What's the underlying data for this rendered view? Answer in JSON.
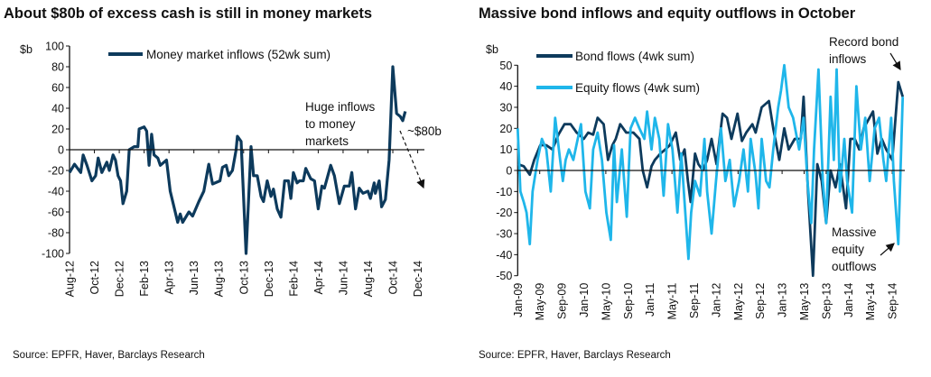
{
  "chart_data": [
    {
      "type": "line",
      "title": "About $80b of excess cash is still in money markets",
      "ylabel": "$b",
      "ylim": [
        -100,
        100
      ],
      "yticks": [
        100,
        80,
        60,
        40,
        20,
        0,
        -20,
        -40,
        -60,
        -80,
        -100
      ],
      "x_unit": "months since Aug-12",
      "xticks": [
        "Aug-12",
        "Oct-12",
        "Dec-12",
        "Feb-13",
        "Apr-13",
        "Jun-13",
        "Aug-13",
        "Oct-13",
        "Dec-13",
        "Feb-14",
        "Apr-14",
        "Jun-14",
        "Aug-14",
        "Oct-14",
        "Dec-14"
      ],
      "legend": "top",
      "source": "Source: EPFR, Haver, Barclays Research",
      "annotations": [
        "Huge inflows",
        "to money",
        "markets",
        "~$80b"
      ],
      "series": [
        {
          "name": "Money market inflows (52wk sum)",
          "color": "#0d3a5c",
          "x": [
            0,
            0.4,
            0.9,
            1.1,
            1.4,
            1.8,
            2.1,
            2.3,
            2.6,
            3.0,
            3.2,
            3.5,
            3.7,
            3.9,
            4.1,
            4.3,
            4.6,
            4.8,
            5.2,
            5.5,
            5.6,
            6.0,
            6.2,
            6.4,
            6.6,
            6.8,
            7.1,
            7.3,
            7.8,
            8.1,
            8.7,
            8.9,
            9.1,
            9.6,
            9.9,
            10.4,
            10.8,
            11.2,
            11.5,
            12.1,
            12.3,
            12.6,
            12.8,
            13.1,
            13.4,
            13.5,
            13.8,
            14.2,
            14.6,
            14.8,
            15.1,
            15.4,
            15.6,
            15.9,
            16.2,
            16.4,
            16.7,
            17.0,
            17.3,
            17.6,
            17.8,
            18.0,
            18.3,
            18.5,
            18.8,
            19.0,
            19.4,
            19.7,
            20.0,
            20.3,
            20.5,
            21.0,
            21.3,
            21.7,
            22.1,
            22.5,
            22.7,
            23.0,
            23.3,
            23.6,
            24.0,
            24.2,
            24.5,
            24.6,
            24.9,
            25.1,
            25.4,
            25.7,
            26.0,
            26.3,
            26.6,
            26.8,
            27.0
          ],
          "values": [
            -22,
            -14,
            -22,
            -5,
            -15,
            -30,
            -25,
            -8,
            -22,
            -12,
            -20,
            -5,
            -10,
            -25,
            -30,
            -52,
            -40,
            0,
            3,
            3,
            20,
            22,
            18,
            -15,
            15,
            -5,
            -8,
            -15,
            -10,
            -40,
            -70,
            -62,
            -70,
            -60,
            -64,
            -50,
            -40,
            -14,
            -33,
            -30,
            -17,
            -15,
            -25,
            -20,
            0,
            13,
            8,
            -100,
            3,
            -25,
            -25,
            -45,
            -50,
            -30,
            -45,
            -38,
            -57,
            -65,
            -30,
            -30,
            -47,
            -22,
            -32,
            -30,
            -30,
            -18,
            -28,
            -30,
            -57,
            -35,
            -37,
            -15,
            -25,
            -52,
            -35,
            -35,
            -22,
            -57,
            -37,
            -42,
            -40,
            -47,
            -32,
            -42,
            -30,
            -55,
            -48,
            -10,
            80,
            35,
            32,
            28,
            37
          ]
        }
      ]
    },
    {
      "type": "line",
      "title": "Massive bond inflows and equity outflows in October",
      "ylabel": "$b",
      "ylim": [
        -50,
        50
      ],
      "yticks": [
        50,
        40,
        30,
        20,
        10,
        0,
        -10,
        -20,
        -30,
        -40,
        -50
      ],
      "x_unit": "months since Jan-09",
      "xticks": [
        "Jan-09",
        "May-09",
        "Sep-09",
        "Jan-10",
        "May-10",
        "Sep-10",
        "Jan-11",
        "May-11",
        "Sep-11",
        "Jan-12",
        "May-12",
        "Sep-12",
        "Jan-13",
        "May-13",
        "Sep-13",
        "Jan-14",
        "May-14",
        "Sep-14"
      ],
      "legend": "top-left",
      "source": "Source: EPFR, Haver, Barclays Research",
      "annotations": [
        "Record bond",
        "inflows",
        "Massive",
        "equity",
        "outflows"
      ],
      "series": [
        {
          "name": "Bond flows (4wk sum)",
          "color": "#0d3a5c",
          "x": [
            0,
            1.1,
            2.2,
            3.0,
            4.1,
            5.2,
            6.3,
            7.4,
            8.5,
            9.6,
            10.7,
            12.0,
            12.8,
            13.7,
            14.5,
            15.6,
            16.4,
            17.2,
            17.8,
            18.6,
            19.7,
            21.0,
            22.1,
            22.7,
            23.5,
            24.3,
            24.9,
            25.9,
            26.8,
            27.6,
            28.7,
            29.5,
            30.3,
            30.9,
            31.4,
            32.2,
            32.8,
            33.6,
            34.4,
            35.2,
            36.1,
            37.2,
            38.0,
            38.8,
            39.9,
            40.7,
            41.5,
            42.6,
            43.2,
            44.3,
            45.6,
            46.4,
            47.5,
            48.4,
            49.2,
            50.3,
            51.4,
            51.9,
            52.7,
            53.6,
            54.4,
            55.2,
            56.0,
            56.8,
            57.7,
            58.5,
            59.6,
            60.4,
            61.2,
            62.0,
            62.8,
            64.5,
            65.3,
            66.1,
            66.9,
            68.0,
            69.1,
            69.9
          ],
          "values": [
            3,
            2,
            -2,
            5,
            12,
            12,
            10,
            17,
            22,
            22,
            18,
            15,
            18,
            17,
            25,
            22,
            5,
            12,
            15,
            22,
            18,
            18,
            15,
            0,
            -8,
            2,
            5,
            8,
            10,
            12,
            18,
            5,
            10,
            -5,
            -15,
            8,
            3,
            0,
            5,
            15,
            3,
            27,
            25,
            15,
            27,
            14,
            18,
            22,
            18,
            30,
            33,
            20,
            5,
            20,
            10,
            15,
            15,
            35,
            -10,
            -50,
            3,
            -5,
            -25,
            0,
            -8,
            3,
            -18,
            15,
            15,
            10,
            20,
            28,
            8,
            15,
            10,
            5,
            42,
            35
          ]
        },
        {
          "name": "Equity flows (4wk sum)",
          "color": "#1fb6ea",
          "x": [
            0,
            0.5,
            1.1,
            1.6,
            2.2,
            2.7,
            3.6,
            4.4,
            5.2,
            6.0,
            6.8,
            7.7,
            8.2,
            8.7,
            9.3,
            10.1,
            10.9,
            11.5,
            12.3,
            13.1,
            13.7,
            14.5,
            15.3,
            16.1,
            16.9,
            17.5,
            18.0,
            18.9,
            19.8,
            20.5,
            21.3,
            22.1,
            23.0,
            23.5,
            24.3,
            24.9,
            25.7,
            26.5,
            27.3,
            28.1,
            29.0,
            29.7,
            30.3,
            31.0,
            31.5,
            32.2,
            33.1,
            33.9,
            34.4,
            35.2,
            36.0,
            36.9,
            37.7,
            38.5,
            39.3,
            40.2,
            41.0,
            41.8,
            42.3,
            43.2,
            43.7,
            44.3,
            45.1,
            45.7,
            46.4,
            47.3,
            47.8,
            48.4,
            49.2,
            50.0,
            51.1,
            51.9,
            52.6,
            53.3,
            53.8,
            54.6,
            55.4,
            56.0,
            56.8,
            57.4,
            57.9,
            58.5,
            59.3,
            59.8,
            60.7,
            61.5,
            62.3,
            63.1,
            63.9,
            64.8,
            65.6,
            66.4,
            66.9,
            67.8,
            68.3,
            69.1,
            69.9
          ],
          "values": [
            20,
            -10,
            -15,
            -20,
            -35,
            -10,
            5,
            15,
            10,
            -10,
            25,
            5,
            -5,
            5,
            10,
            5,
            15,
            22,
            -10,
            -18,
            10,
            18,
            5,
            -20,
            -33,
            12,
            -15,
            10,
            -22,
            20,
            25,
            20,
            15,
            28,
            10,
            25,
            15,
            -12,
            22,
            10,
            -20,
            8,
            -15,
            -42,
            -20,
            -5,
            -12,
            15,
            -10,
            -30,
            -5,
            20,
            -5,
            5,
            -17,
            -5,
            10,
            -10,
            15,
            -2,
            -18,
            15,
            -5,
            -8,
            10,
            30,
            38,
            50,
            30,
            25,
            10,
            25,
            -5,
            -25,
            10,
            48,
            -5,
            -25,
            35,
            5,
            48,
            -10,
            15,
            -5,
            -20,
            40,
            10,
            25,
            -5,
            20,
            25,
            5,
            -5,
            25,
            -5,
            -35,
            35
          ]
        }
      ]
    }
  ]
}
